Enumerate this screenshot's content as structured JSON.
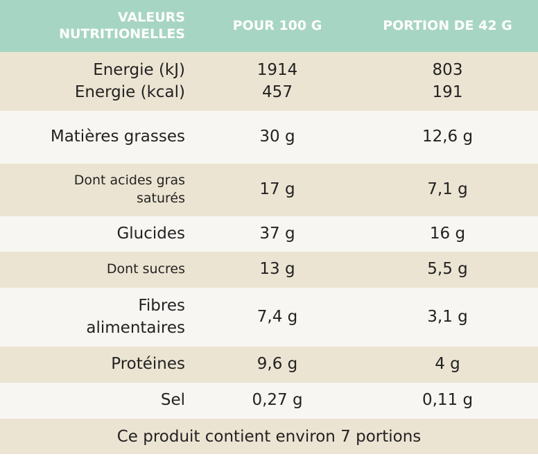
{
  "header": [
    "VALEURS NUTRITIONELLES",
    "POUR 100 G",
    "PORTION DE 42 G"
  ],
  "header_lines": [
    [
      "VALEURS",
      "NUTRITIONELLES"
    ],
    [
      "POUR 100 G"
    ],
    [
      "PORTION DE 42 G"
    ]
  ],
  "rows": [
    {
      "cells": [
        [
          "Energie (kJ)",
          "Energie (kcal)"
        ],
        [
          "1914",
          "457"
        ],
        [
          "803",
          "191"
        ]
      ]
    },
    {
      "cells": [
        [
          "Matières grasses"
        ],
        [
          "30 g"
        ],
        [
          "12,6 g"
        ]
      ]
    },
    {
      "cells": [
        [
          "Dont acides gras",
          "saturés"
        ],
        [
          "17 g"
        ],
        [
          "7,1 g"
        ]
      ]
    },
    {
      "cells": [
        [
          "Glucides"
        ],
        [
          "37 g"
        ],
        [
          "16 g"
        ]
      ]
    },
    {
      "cells": [
        [
          "Dont sucres"
        ],
        [
          "13 g"
        ],
        [
          "5,5 g"
        ]
      ]
    },
    {
      "cells": [
        [
          "Fibres",
          "alimentaires"
        ],
        [
          "7,4 g"
        ],
        [
          "3,1 g"
        ]
      ]
    },
    {
      "cells": [
        [
          "Protéines"
        ],
        [
          "9,6 g"
        ],
        [
          "4 g"
        ]
      ]
    },
    {
      "cells": [
        [
          "Sel"
        ],
        [
          "0,27 g"
        ],
        [
          "0,11 g"
        ]
      ]
    }
  ],
  "footer": "Ce produit contient environ 7 portions"
}
